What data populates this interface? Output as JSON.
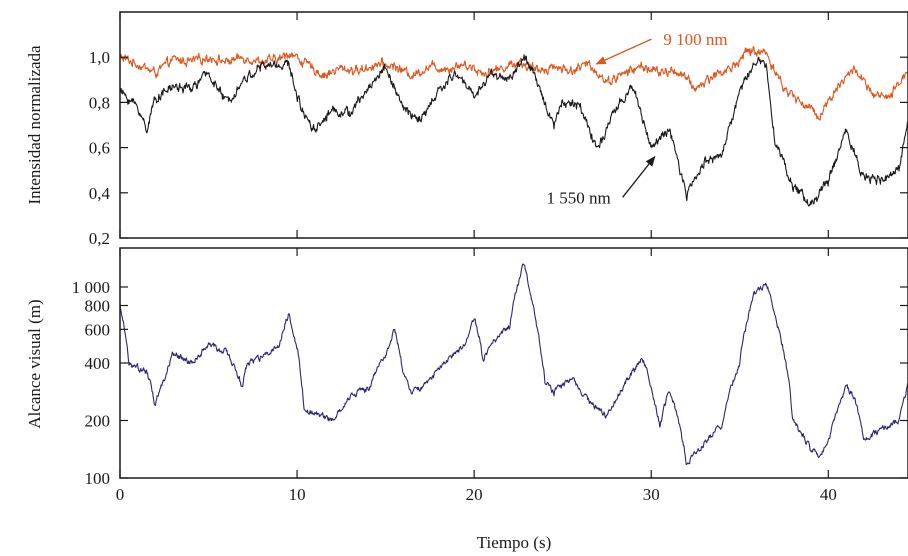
{
  "chart_data": [
    {
      "type": "line",
      "panel": "top",
      "ylabel": "Intensidad normalizada",
      "xlim": [
        0,
        44.5
      ],
      "ylim": [
        0.2,
        1.2
      ],
      "xticks": [
        0,
        10,
        20,
        30,
        40
      ],
      "yticks": [
        0.2,
        0.4,
        0.6,
        0.8,
        1.0
      ],
      "ytick_labels": [
        "0,2",
        "0,4",
        "0,6",
        "0,8",
        "1,0"
      ],
      "grid": false,
      "series": [
        {
          "name": "9 100 nm",
          "color": "#e0561c",
          "x": [
            0,
            1,
            2,
            3,
            4,
            5,
            6,
            7,
            8,
            9,
            9.6,
            10.5,
            11.5,
            12.5,
            13.5,
            14.5,
            15.5,
            16.5,
            17.5,
            18.5,
            19.5,
            20.5,
            21.5,
            22.5,
            23.5,
            24.5,
            25.5,
            26.5,
            27.5,
            28.5,
            29.5,
            30.5,
            31.5,
            32.5,
            33.5,
            34.5,
            35.5,
            36.5,
            37.5,
            38.5,
            39.5,
            40.5,
            41.5,
            42.5,
            43.5,
            44.5
          ],
          "values": [
            1.0,
            0.97,
            0.93,
            0.99,
            0.98,
            1.0,
            0.98,
            1.0,
            0.98,
            0.99,
            1.02,
            0.97,
            0.92,
            0.95,
            0.94,
            0.97,
            0.96,
            0.92,
            0.96,
            0.95,
            0.97,
            0.93,
            0.95,
            0.98,
            0.94,
            0.96,
            0.94,
            0.97,
            0.89,
            0.93,
            0.96,
            0.93,
            0.94,
            0.86,
            0.92,
            0.95,
            1.03,
            1.02,
            0.86,
            0.8,
            0.74,
            0.87,
            0.95,
            0.83,
            0.82,
            0.95
          ]
        },
        {
          "name": "1 550 nm",
          "color": "#1a1a1a",
          "x": [
            0,
            1,
            1.5,
            2,
            3,
            4,
            5,
            6,
            7,
            8,
            9.5,
            10.2,
            11,
            12,
            13,
            14,
            15,
            16,
            17,
            18,
            19,
            20,
            21,
            22,
            22.8,
            23.5,
            24.5,
            25,
            26,
            27,
            28,
            29,
            30,
            31,
            32,
            33,
            34,
            35,
            35.8,
            36.5,
            37,
            38,
            39,
            40,
            41,
            42,
            43,
            44,
            44.5
          ],
          "values": [
            0.85,
            0.78,
            0.68,
            0.82,
            0.87,
            0.86,
            0.93,
            0.8,
            0.9,
            0.96,
            0.97,
            0.78,
            0.68,
            0.77,
            0.75,
            0.86,
            0.96,
            0.77,
            0.72,
            0.85,
            0.93,
            0.83,
            0.93,
            0.9,
            1.0,
            0.9,
            0.7,
            0.81,
            0.78,
            0.59,
            0.77,
            0.87,
            0.6,
            0.68,
            0.39,
            0.54,
            0.57,
            0.85,
            0.98,
            0.97,
            0.63,
            0.43,
            0.35,
            0.45,
            0.68,
            0.47,
            0.45,
            0.5,
            0.75
          ]
        }
      ],
      "annotations": [
        {
          "text": "9 100 nm",
          "x": 32.5,
          "y": 1.08,
          "arrow_to": [
            26.9,
            0.97
          ],
          "color": "#e0561c"
        },
        {
          "text": "1 550 nm",
          "x": 25.9,
          "y": 0.38,
          "arrow_to": [
            30.2,
            0.56
          ],
          "color": "#1a1a1a"
        }
      ]
    },
    {
      "type": "line",
      "panel": "bottom",
      "xlabel": "Tiempo (s)",
      "ylabel": "Alcance visual (m)",
      "yscale": "log",
      "xlim": [
        0,
        44.5
      ],
      "ylim": [
        100,
        1600
      ],
      "xticks": [
        0,
        10,
        20,
        30,
        40
      ],
      "yticks": [
        100,
        200,
        400,
        600,
        800,
        1000
      ],
      "ytick_labels": [
        "100",
        "200",
        "400",
        "600",
        "800",
        "1 000"
      ],
      "grid": false,
      "series": [
        {
          "name": "",
          "color": "#2c2673",
          "x": [
            0,
            0.5,
            1,
            1.5,
            2,
            2.5,
            3,
            4,
            5,
            6,
            6.9,
            7.2,
            8,
            9,
            9.5,
            10,
            10.4,
            11,
            12,
            13,
            14,
            15,
            15.5,
            16,
            16.5,
            17.5,
            18.5,
            19.5,
            20,
            20.5,
            21,
            22,
            22.8,
            23.5,
            24,
            24.5,
            25.5,
            26.5,
            27.5,
            28.5,
            29.5,
            30.5,
            31,
            32,
            33,
            34,
            35,
            35.8,
            36.5,
            37,
            38,
            39,
            39.5,
            40,
            41,
            41.5,
            42,
            43,
            44,
            44.5
          ],
          "values": [
            800,
            400,
            380,
            360,
            240,
            330,
            450,
            400,
            500,
            460,
            300,
            400,
            420,
            500,
            720,
            480,
            220,
            220,
            200,
            270,
            290,
            440,
            600,
            350,
            280,
            320,
            420,
            500,
            700,
            420,
            500,
            620,
            1300,
            650,
            320,
            280,
            330,
            250,
            210,
            310,
            420,
            180,
            290,
            120,
            150,
            190,
            400,
            900,
            1050,
            700,
            200,
            140,
            130,
            150,
            300,
            260,
            160,
            180,
            200,
            310
          ]
        }
      ]
    }
  ]
}
